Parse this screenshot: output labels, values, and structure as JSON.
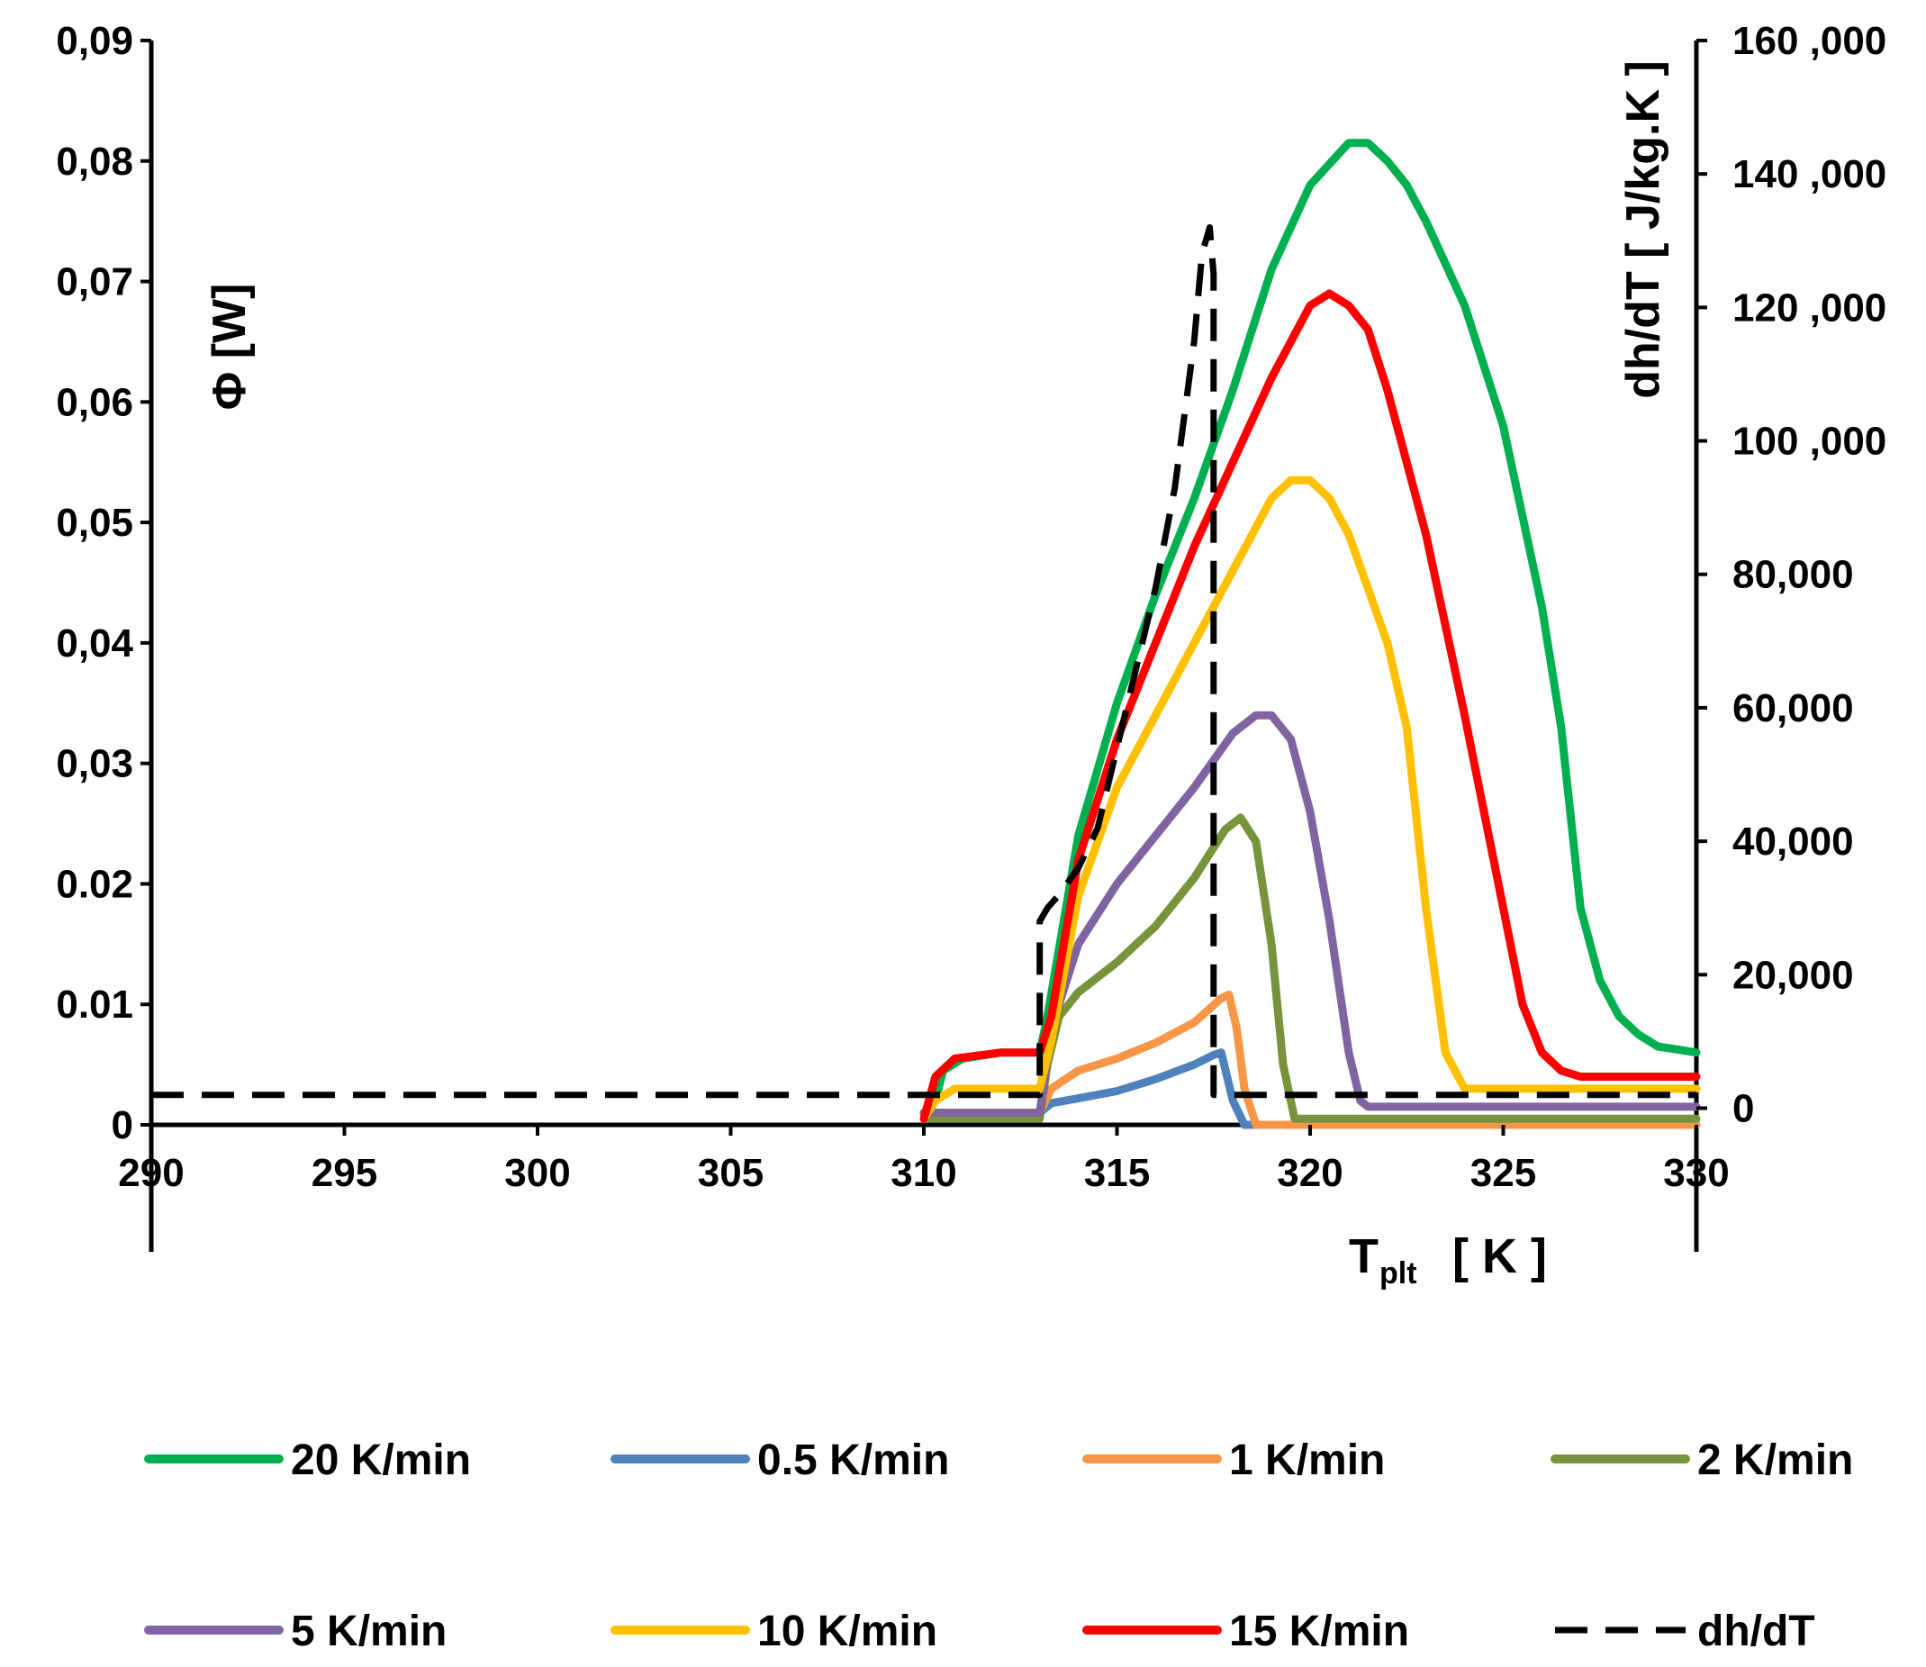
{
  "chart_data": {
    "type": "line",
    "title": "",
    "x_axis": {
      "label_main": "T",
      "label_sub": "plt",
      "label_unit": "[ K ]",
      "range": [
        290,
        330
      ],
      "ticks": [
        290,
        295,
        300,
        305,
        310,
        315,
        320,
        325,
        330
      ],
      "tick_labels": [
        "290",
        "295",
        "300",
        "305",
        "310",
        "315",
        "320",
        "325",
        "330"
      ]
    },
    "y_left": {
      "label": "Φ [W]",
      "range": [
        0,
        0.09
      ],
      "ticks": [
        0,
        0.01,
        0.02,
        0.03,
        0.04,
        0.05,
        0.06,
        0.07,
        0.08,
        0.09
      ],
      "tick_labels": [
        "0",
        "0.01",
        "0.02",
        "0,03",
        "0,04",
        "0,05",
        "0,06",
        "0,07",
        "0,08",
        "0,09"
      ]
    },
    "y_right": {
      "label": "dh/dT [ J/kg.K ]",
      "range": [
        -2500,
        160000
      ],
      "ticks": [
        0,
        20000,
        40000,
        60000,
        80000,
        100000,
        120000,
        140000,
        160000
      ],
      "tick_labels": [
        "0",
        "20,000",
        "40,000",
        "60,000",
        "80,000",
        "100 ,000",
        "120 ,000",
        "140 ,000",
        "160 ,000"
      ]
    },
    "series": [
      {
        "name": "20 K/min",
        "color": "#00B050",
        "axis": "left",
        "dashed": false,
        "x": [
          310,
          310.3,
          310.5,
          311,
          312,
          313,
          313.2,
          314,
          315,
          316,
          317,
          318,
          319,
          320,
          321,
          321.5,
          322,
          322.5,
          323,
          324,
          325,
          326,
          326.5,
          327,
          327.5,
          328,
          328.5,
          329,
          330
        ],
        "y": [
          0.001,
          0.002,
          0.0045,
          0.0055,
          0.006,
          0.006,
          0.009,
          0.024,
          0.035,
          0.044,
          0.052,
          0.061,
          0.071,
          0.078,
          0.0815,
          0.0815,
          0.08,
          0.078,
          0.075,
          0.068,
          0.058,
          0.043,
          0.033,
          0.018,
          0.012,
          0.009,
          0.0075,
          0.0065,
          0.006
        ]
      },
      {
        "name": "0.5 K/min",
        "color": "#4F81BD",
        "axis": "left",
        "dashed": false,
        "x": [
          310,
          313,
          313.3,
          314,
          315,
          316,
          317,
          317.5,
          317.7,
          318,
          318.3,
          330
        ],
        "y": [
          0.001,
          0.001,
          0.0018,
          0.0022,
          0.0028,
          0.0038,
          0.005,
          0.0058,
          0.006,
          0.002,
          0,
          0
        ]
      },
      {
        "name": "1 K/min",
        "color": "#F79646",
        "axis": "left",
        "dashed": false,
        "x": [
          310,
          313,
          313.3,
          314,
          315,
          316,
          317,
          317.7,
          317.9,
          318.1,
          318.3,
          318.6,
          330
        ],
        "y": [
          0.001,
          0.001,
          0.003,
          0.0045,
          0.0055,
          0.0068,
          0.0085,
          0.0105,
          0.0108,
          0.008,
          0.003,
          0,
          0
        ]
      },
      {
        "name": "2 K/min",
        "color": "#77933C",
        "axis": "left",
        "dashed": false,
        "x": [
          310,
          313,
          313.2,
          313.5,
          314,
          315,
          316,
          317,
          317.8,
          318.2,
          318.6,
          319,
          319.3,
          319.6,
          330
        ],
        "y": [
          0.0005,
          0.0005,
          0.005,
          0.009,
          0.011,
          0.0135,
          0.0165,
          0.0205,
          0.0245,
          0.0255,
          0.0235,
          0.015,
          0.005,
          0.0005,
          0.0005
        ]
      },
      {
        "name": "5 K/min",
        "color": "#8064A2",
        "axis": "left",
        "dashed": false,
        "x": [
          310,
          313,
          313.3,
          314,
          315,
          316,
          317,
          318,
          318.6,
          319,
          319.5,
          320,
          320.5,
          321,
          321.3,
          321.5,
          330
        ],
        "y": [
          0.001,
          0.001,
          0.008,
          0.015,
          0.02,
          0.024,
          0.028,
          0.0325,
          0.034,
          0.034,
          0.032,
          0.026,
          0.017,
          0.006,
          0.002,
          0.0015,
          0.0015
        ]
      },
      {
        "name": "10 K/min",
        "color": "#FFC000",
        "axis": "left",
        "dashed": false,
        "x": [
          310,
          310.3,
          310.8,
          312,
          313,
          313.3,
          314,
          315,
          316,
          317,
          318,
          319,
          319.5,
          320,
          320.5,
          321,
          322,
          322.5,
          323,
          323.5,
          324,
          325,
          330
        ],
        "y": [
          0.0005,
          0.002,
          0.003,
          0.003,
          0.003,
          0.007,
          0.019,
          0.028,
          0.034,
          0.04,
          0.046,
          0.052,
          0.0535,
          0.0535,
          0.052,
          0.049,
          0.04,
          0.033,
          0.018,
          0.006,
          0.003,
          0.003,
          0.003
        ]
      },
      {
        "name": "15 K/min",
        "color": "#FF0000",
        "axis": "left",
        "dashed": false,
        "x": [
          310,
          310.3,
          310.8,
          312,
          313,
          313.3,
          314,
          315,
          316,
          317,
          318,
          319,
          320,
          320.5,
          321,
          321.5,
          322,
          323,
          324,
          325,
          325.5,
          326,
          326.5,
          327,
          330
        ],
        "y": [
          0.0005,
          0.004,
          0.0055,
          0.006,
          0.006,
          0.009,
          0.022,
          0.032,
          0.04,
          0.048,
          0.055,
          0.062,
          0.068,
          0.069,
          0.068,
          0.066,
          0.061,
          0.049,
          0.034,
          0.018,
          0.01,
          0.006,
          0.0045,
          0.004,
          0.004
        ]
      },
      {
        "name": "dh/dT",
        "color": "#000000",
        "axis": "right",
        "dashed": true,
        "x": [
          290,
          313,
          313,
          313.2,
          313.5,
          314,
          314.5,
          315,
          315.5,
          316,
          316.5,
          317,
          317.2,
          317.4,
          317.5,
          317.5,
          317.8,
          330
        ],
        "y": [
          2000,
          2000,
          28000,
          30000,
          32000,
          36000,
          42000,
          54000,
          66000,
          78000,
          93000,
          115000,
          128000,
          132000,
          125000,
          2000,
          2000,
          2000
        ]
      }
    ],
    "legend": {
      "position": "bottom",
      "order": [
        "20 K/min",
        "0.5 K/min",
        "1 K/min",
        "2 K/min",
        "5 K/min",
        "10 K/min",
        "15 K/min",
        "dh/dT"
      ]
    }
  }
}
